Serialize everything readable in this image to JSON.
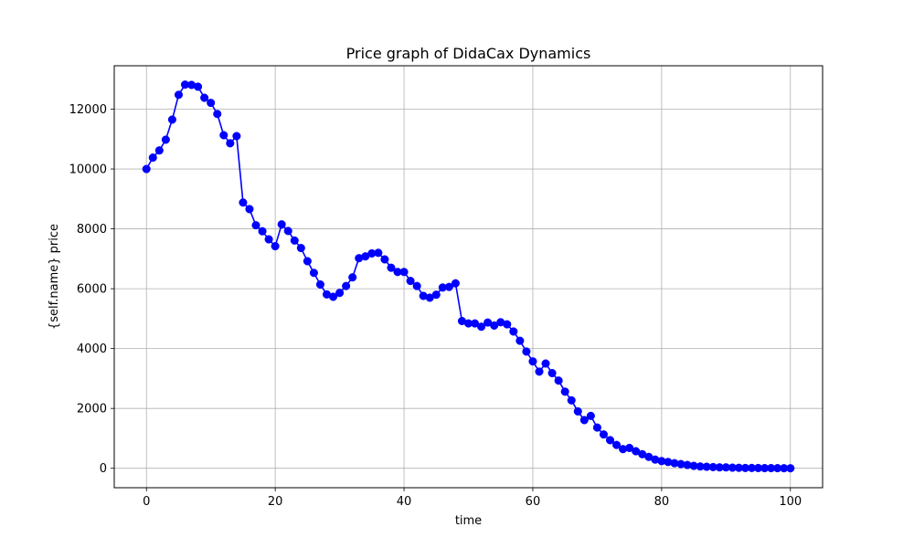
{
  "chart_data": {
    "type": "line",
    "title": "Price graph of DidaCax Dynamics",
    "xlabel": "time",
    "ylabel": "{self.name} price",
    "xlim": [
      -5,
      105
    ],
    "ylim": [
      -650,
      13450
    ],
    "x_ticks": [
      0,
      20,
      40,
      60,
      80,
      100
    ],
    "y_ticks": [
      0,
      2000,
      4000,
      6000,
      8000,
      10000,
      12000
    ],
    "grid": true,
    "series": [
      {
        "color": "#0000ff",
        "marker": "circle",
        "x": [
          0,
          1,
          2,
          3,
          4,
          5,
          6,
          7,
          8,
          9,
          10,
          11,
          12,
          13,
          14,
          15,
          16,
          17,
          18,
          19,
          20,
          21,
          22,
          23,
          24,
          25,
          26,
          27,
          28,
          29,
          30,
          31,
          32,
          33,
          34,
          35,
          36,
          37,
          38,
          39,
          40,
          41,
          42,
          43,
          44,
          45,
          46,
          47,
          48,
          49,
          50,
          51,
          52,
          53,
          54,
          55,
          56,
          57,
          58,
          59,
          60,
          61,
          62,
          63,
          64,
          65,
          66,
          67,
          68,
          69,
          70,
          71,
          72,
          73,
          74,
          75,
          76,
          77,
          78,
          79,
          80,
          81,
          82,
          83,
          84,
          85,
          86,
          87,
          88,
          89,
          90,
          91,
          92,
          93,
          94,
          95,
          96,
          97,
          98,
          99,
          100
        ],
        "y": [
          10000,
          10380,
          10620,
          10980,
          11650,
          12480,
          12820,
          12810,
          12750,
          12380,
          12210,
          11840,
          11130,
          10860,
          11100,
          8880,
          8660,
          8120,
          7920,
          7650,
          7420,
          8150,
          7930,
          7610,
          7360,
          6920,
          6530,
          6140,
          5810,
          5730,
          5860,
          6090,
          6380,
          7020,
          7080,
          7180,
          7200,
          6980,
          6700,
          6560,
          6560,
          6260,
          6090,
          5760,
          5700,
          5800,
          6040,
          6060,
          6180,
          4920,
          4840,
          4840,
          4730,
          4870,
          4770,
          4880,
          4810,
          4570,
          4260,
          3900,
          3570,
          3230,
          3500,
          3180,
          2930,
          2560,
          2270,
          1900,
          1610,
          1750,
          1360,
          1130,
          940,
          780,
          640,
          680,
          570,
          470,
          380,
          290,
          240,
          210,
          170,
          140,
          110,
          80,
          60,
          50,
          40,
          30,
          30,
          20,
          15,
          10,
          10,
          8,
          5,
          5,
          3,
          2,
          0
        ]
      }
    ]
  }
}
